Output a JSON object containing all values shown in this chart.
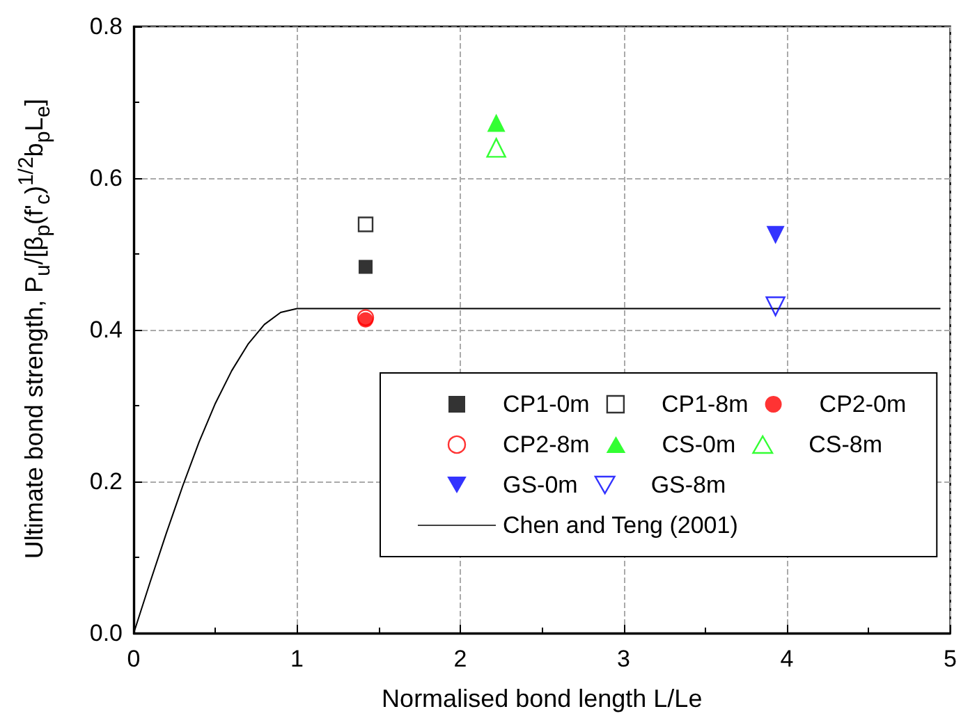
{
  "chart_data": {
    "type": "scatter",
    "xlabel": "Normalised bond length L/Le",
    "ylabel": "Ultimate bond strength, P$_{u}$/[β$_{p}$(f'$_{c}$)$^{1/2}$b$_{p}$L$_{e}$]",
    "xlim": [
      0,
      5
    ],
    "xticks": [
      0,
      1,
      2,
      3,
      4,
      5
    ],
    "ylim": [
      0,
      0.8
    ],
    "yticks": [
      {
        "value": 0,
        "label": "0.0"
      },
      {
        "value": 0.2,
        "label": "0.2"
      },
      {
        "value": 0.4,
        "label": "0.4"
      },
      {
        "value": 0.6,
        "label": "0.6"
      },
      {
        "value": 0.8,
        "label": "0.8"
      }
    ],
    "grid": true,
    "legend": "bottom right",
    "series": [
      {
        "name": "CP1-0m",
        "color": "#000000",
        "marker": "square",
        "x": [
          1.42
        ],
        "values": [
          0.483
        ]
      },
      {
        "name": "CP1-8m",
        "color": "#000000",
        "marker": "square-open",
        "x": [
          1.42
        ],
        "values": [
          0.539
        ]
      },
      {
        "name": "CP2-0m",
        "color": "#ff0000",
        "marker": "circle",
        "x": [
          1.42
        ],
        "values": [
          0.413
        ]
      },
      {
        "name": "CP2-8m",
        "color": "#ff0000",
        "marker": "circle-open",
        "x": [
          1.42
        ],
        "values": [
          0.416
        ]
      },
      {
        "name": "CS-0m",
        "color": "#00ff00",
        "marker": "triangle",
        "x": [
          2.22
        ],
        "values": [
          0.673
        ]
      },
      {
        "name": "CS-8m",
        "color": "#00ff00",
        "marker": "triangle-open",
        "x": [
          2.22
        ],
        "values": [
          0.64
        ]
      },
      {
        "name": "GS-0m",
        "color": "#0000ff",
        "marker": "triangle-down",
        "x": [
          3.93
        ],
        "values": [
          0.525
        ]
      },
      {
        "name": "GS-8m",
        "color": "#0000ff",
        "marker": "triangle-down-open",
        "x": [
          3.93
        ],
        "values": [
          0.431
        ]
      },
      {
        "name": "Chen and Teng (2001)",
        "type": "line",
        "color": "#000000",
        "marker": "none",
        "line_style": "solid",
        "x": [
          0,
          0.1,
          0.2,
          0.3,
          0.4,
          0.5,
          0.6,
          0.7,
          0.8,
          0.9,
          1,
          4.94
        ],
        "values": [
          0,
          0.067,
          0.132,
          0.194,
          0.252,
          0.303,
          0.346,
          0.381,
          0.407,
          0.423,
          0.428,
          0.428
        ]
      }
    ]
  }
}
